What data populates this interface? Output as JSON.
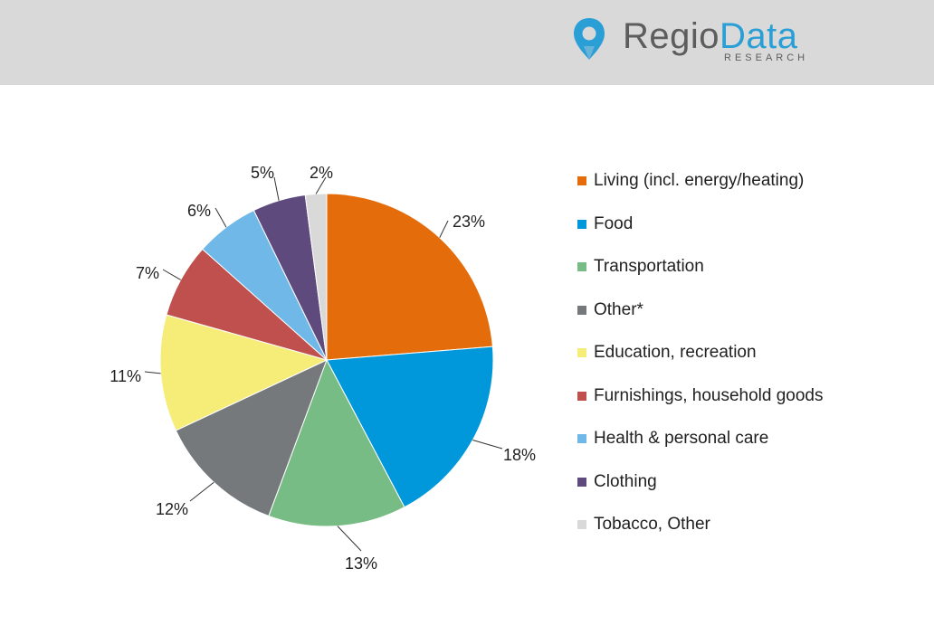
{
  "brand": {
    "name_part1": "Regio",
    "name_part2": "Data",
    "subtitle": "RESEARCH",
    "header_color": "#d9d9d9",
    "accent": "#2a9fd6"
  },
  "chart_data": {
    "type": "pie",
    "legend_position": "right",
    "slices": [
      {
        "label": "Living (incl. energy/heating)",
        "value": 23,
        "display": "23%",
        "color": "#e46c0a"
      },
      {
        "label": "Food",
        "value": 18,
        "display": "18%",
        "color": "#0098db"
      },
      {
        "label": "Transportation",
        "value": 13,
        "display": "13%",
        "color": "#77bc84"
      },
      {
        "label": "Other*",
        "value": 12,
        "display": "12%",
        "color": "#76797b"
      },
      {
        "label": "Education, recreation",
        "value": 11,
        "display": "11%",
        "color": "#f6ec78"
      },
      {
        "label": "Furnishings, household goods",
        "value": 7,
        "display": "7%",
        "color": "#c0504d"
      },
      {
        "label": "Health & personal care",
        "value": 6,
        "display": "6%",
        "color": "#6fb8e8"
      },
      {
        "label": "Clothing",
        "value": 5,
        "display": "5%",
        "color": "#5e4a7d"
      },
      {
        "label": "Tobacco, Other",
        "value": 2,
        "display": "2%",
        "color": "#d9d9d9"
      }
    ]
  }
}
